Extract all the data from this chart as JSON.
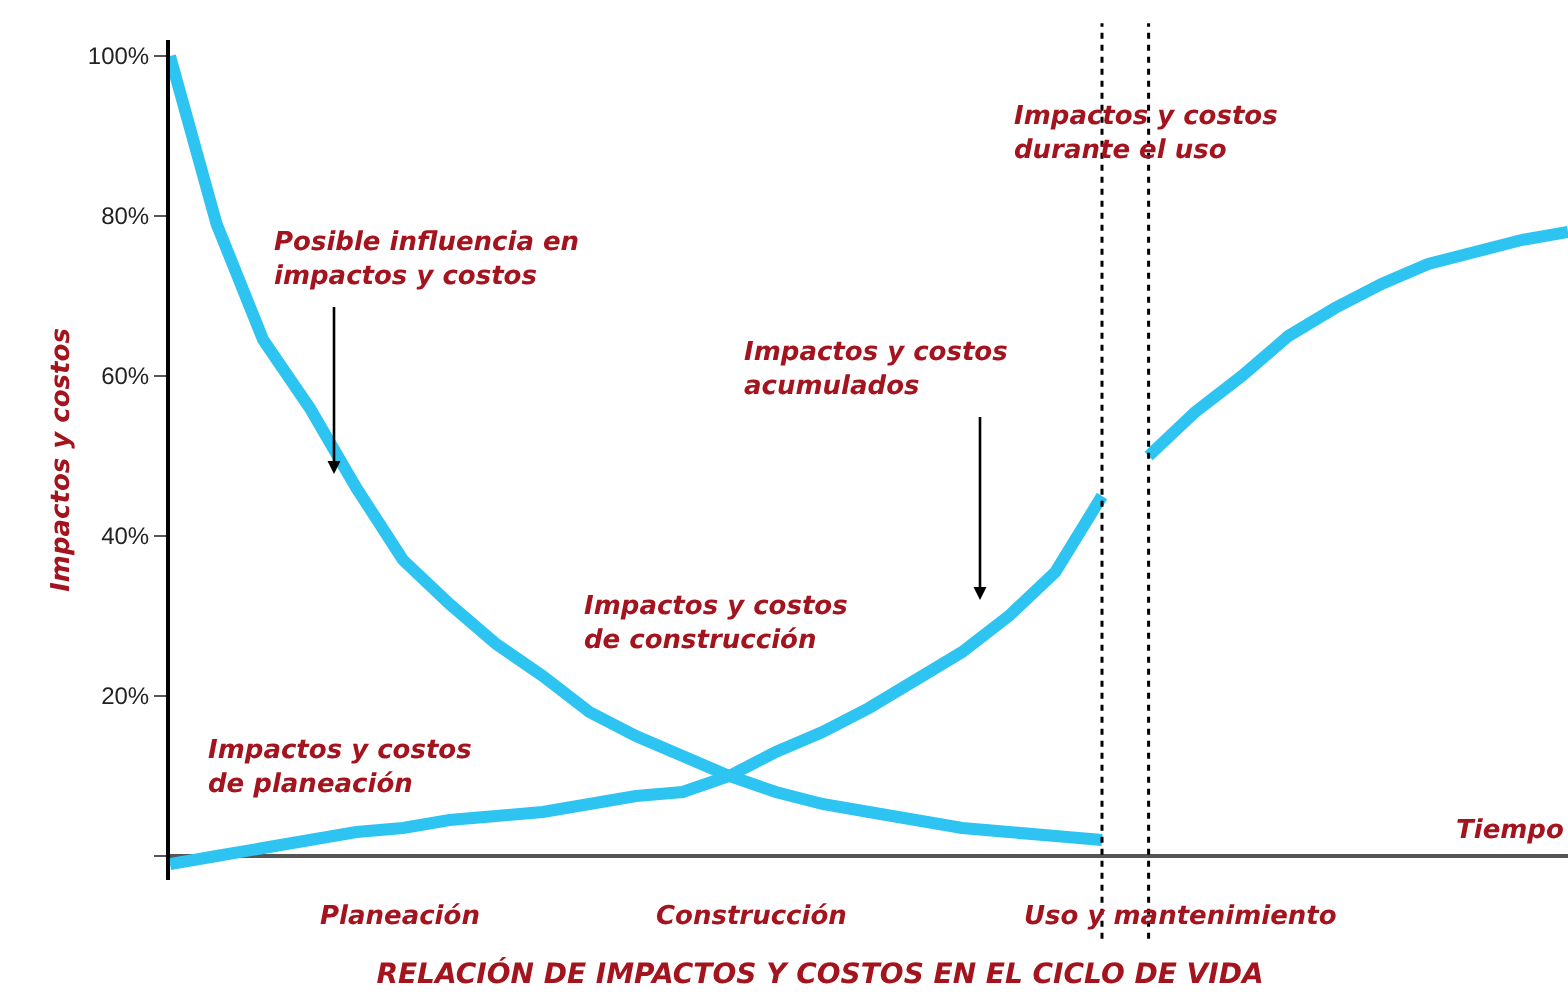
{
  "chart_data": {
    "type": "line",
    "title": "RELACIÓN DE IMPACTOS Y COSTOS EN EL CICLO DE VIDA",
    "ylabel": "Impactos y costos",
    "categories": [
      null,
      null,
      null,
      null,
      null,
      null,
      null,
      null,
      null,
      null,
      null,
      null,
      null,
      null,
      null,
      null,
      null,
      null,
      null,
      null,
      null,
      null,
      null,
      null,
      null,
      null,
      null,
      null,
      null,
      null,
      null
    ],
    "series": [
      {
        "color": "#2ec4f1",
        "values": [
          100,
          79,
          64.5,
          56,
          46,
          37,
          31.5,
          26.5,
          22.5,
          18,
          15,
          12.5,
          10,
          8,
          6.5,
          5.5,
          4.5,
          3.5,
          3,
          2.5,
          2,
          null,
          null,
          null,
          null,
          null,
          null,
          null,
          null,
          null,
          null
        ]
      },
      {
        "color": "#2ec4f1",
        "values": [
          -1,
          0,
          1,
          2,
          3,
          3.5,
          4.5,
          5,
          5.5,
          6.5,
          7.5,
          8,
          10,
          13,
          15.5,
          18.5,
          22,
          25.5,
          30,
          35.5,
          45,
          null,
          null,
          null,
          null,
          null,
          null,
          null,
          null,
          null,
          null
        ]
      },
      {
        "color": "#2ec4f1",
        "values": [
          null,
          null,
          null,
          null,
          null,
          null,
          null,
          null,
          null,
          null,
          null,
          null,
          null,
          null,
          null,
          null,
          null,
          null,
          null,
          null,
          null,
          50,
          55.5,
          60,
          65,
          68.5,
          71.5,
          74,
          75.5,
          77,
          78
        ]
      }
    ],
    "ylim": [
      -3,
      102
    ],
    "yticks": [
      {
        "value": 0,
        "label": null
      },
      {
        "value": 20,
        "label": "20%"
      },
      {
        "value": 40,
        "label": "40%"
      },
      {
        "value": 60,
        "label": "60%"
      },
      {
        "value": 80,
        "label": "80%"
      },
      {
        "value": 100,
        "label": "100%"
      }
    ],
    "tick_labels": "y",
    "marker": "none",
    "line_style": "solid",
    "annotations": [
      "Posible influencia en\nimpactos y costos",
      "Impactos y costos\nacumulados",
      "Impactos y costos\nde construcción",
      "Impactos y costos\nde planeación",
      "Impactos y costos\ndurante el uso",
      "Tiempo",
      "Planeación",
      "Construcción",
      "Uso y mantenimiento"
    ]
  }
}
